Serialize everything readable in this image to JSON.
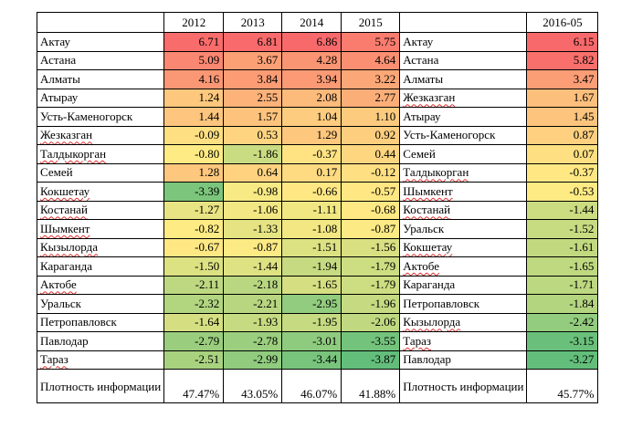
{
  "headers": [
    "",
    "2012",
    "2013",
    "2014",
    "2015",
    "",
    "2016-05"
  ],
  "left_rows": [
    {
      "city": "Актау",
      "spell": false,
      "values": [
        "6.71",
        "6.81",
        "6.86",
        "5.75"
      ]
    },
    {
      "city": "Астана",
      "spell": false,
      "values": [
        "5.09",
        "3.67",
        "4.28",
        "4.64"
      ]
    },
    {
      "city": "Алматы",
      "spell": false,
      "values": [
        "4.16",
        "3.84",
        "3.94",
        "3.22"
      ]
    },
    {
      "city": "Атырау",
      "spell": false,
      "values": [
        "1.24",
        "2.55",
        "2.08",
        "2.77"
      ]
    },
    {
      "city": "Усть-Каменогорск",
      "spell": false,
      "values": [
        "1.44",
        "1.57",
        "1.04",
        "1.10"
      ]
    },
    {
      "city": "Жезказган",
      "spell": true,
      "values": [
        "-0.09",
        "0.53",
        "1.29",
        "0.92"
      ]
    },
    {
      "city": "Талдыкорган",
      "spell": true,
      "values": [
        "-0.80",
        "-1.86",
        "-0.37",
        "0.44"
      ]
    },
    {
      "city": "Семей",
      "spell": false,
      "values": [
        "1.28",
        "0.64",
        "0.17",
        "-0.12"
      ]
    },
    {
      "city": "Кокшетау",
      "spell": true,
      "values": [
        "-3.39",
        "-0.98",
        "-0.66",
        "-0.57"
      ]
    },
    {
      "city": "Костанай",
      "spell": true,
      "values": [
        "-1.27",
        "-1.06",
        "-1.11",
        "-0.68"
      ]
    },
    {
      "city": "Шымкент",
      "spell": true,
      "values": [
        "-0.82",
        "-1.33",
        "-1.08",
        "-0.87"
      ]
    },
    {
      "city": "Кызылорда",
      "spell": true,
      "values": [
        "-0.67",
        "-0.87",
        "-1.51",
        "-1.56"
      ]
    },
    {
      "city": "Караганда",
      "spell": false,
      "values": [
        "-1.50",
        "-1.44",
        "-1.94",
        "-1.79"
      ]
    },
    {
      "city": "Актобе",
      "spell": true,
      "values": [
        "-2.11",
        "-2.18",
        "-1.65",
        "-1.79"
      ]
    },
    {
      "city": "Уральск",
      "spell": false,
      "values": [
        "-2.32",
        "-2.21",
        "-2.95",
        "-1.96"
      ]
    },
    {
      "city": "Петропавловск",
      "spell": false,
      "values": [
        "-1.64",
        "-1.93",
        "-1.95",
        "-2.06"
      ]
    },
    {
      "city": "Павлодар",
      "spell": false,
      "values": [
        "-2.79",
        "-2.78",
        "-3.01",
        "-3.55"
      ]
    },
    {
      "city": "Тараз",
      "spell": true,
      "values": [
        "-2.51",
        "-2.99",
        "-3.44",
        "-3.87"
      ]
    }
  ],
  "right_rows": [
    {
      "city": "Актау",
      "spell": false,
      "value": "6.15"
    },
    {
      "city": "Астана",
      "spell": false,
      "value": "5.82"
    },
    {
      "city": "Алматы",
      "spell": false,
      "value": "3.47"
    },
    {
      "city": "Жезказган",
      "spell": true,
      "value": "1.67"
    },
    {
      "city": "Атырау",
      "spell": false,
      "value": "1.45"
    },
    {
      "city": "Усть-Каменогорск",
      "spell": false,
      "value": "0.87"
    },
    {
      "city": "Семей",
      "spell": false,
      "value": "0.07"
    },
    {
      "city": "Талдыкорган",
      "spell": true,
      "value": "-0.37"
    },
    {
      "city": "Шымкент",
      "spell": true,
      "value": "-0.53"
    },
    {
      "city": "Костанай",
      "spell": true,
      "value": "-1.44"
    },
    {
      "city": "Уральск",
      "spell": false,
      "value": "-1.52"
    },
    {
      "city": "Кокшетау",
      "spell": true,
      "value": "-1.61"
    },
    {
      "city": "Актобе",
      "spell": true,
      "value": "-1.65"
    },
    {
      "city": "Караганда",
      "spell": false,
      "value": "-1.71"
    },
    {
      "city": "Петропавловск",
      "spell": false,
      "value": "-1.84"
    },
    {
      "city": "Кызылорда",
      "spell": true,
      "value": "-2.42"
    },
    {
      "city": "Тараз",
      "spell": true,
      "value": "-3.15"
    },
    {
      "city": "Павлодар",
      "spell": false,
      "value": "-3.27"
    }
  ],
  "footer": {
    "label": "Плотность информации",
    "left_values": [
      "47.47%",
      "43.05%",
      "46.07%",
      "41.88%"
    ],
    "right_label": "Плотность информации",
    "right_value": "45.77%"
  },
  "color_scale": {
    "high": "#f8696b",
    "mid": "#ffeb84",
    "low": "#63be7b"
  }
}
